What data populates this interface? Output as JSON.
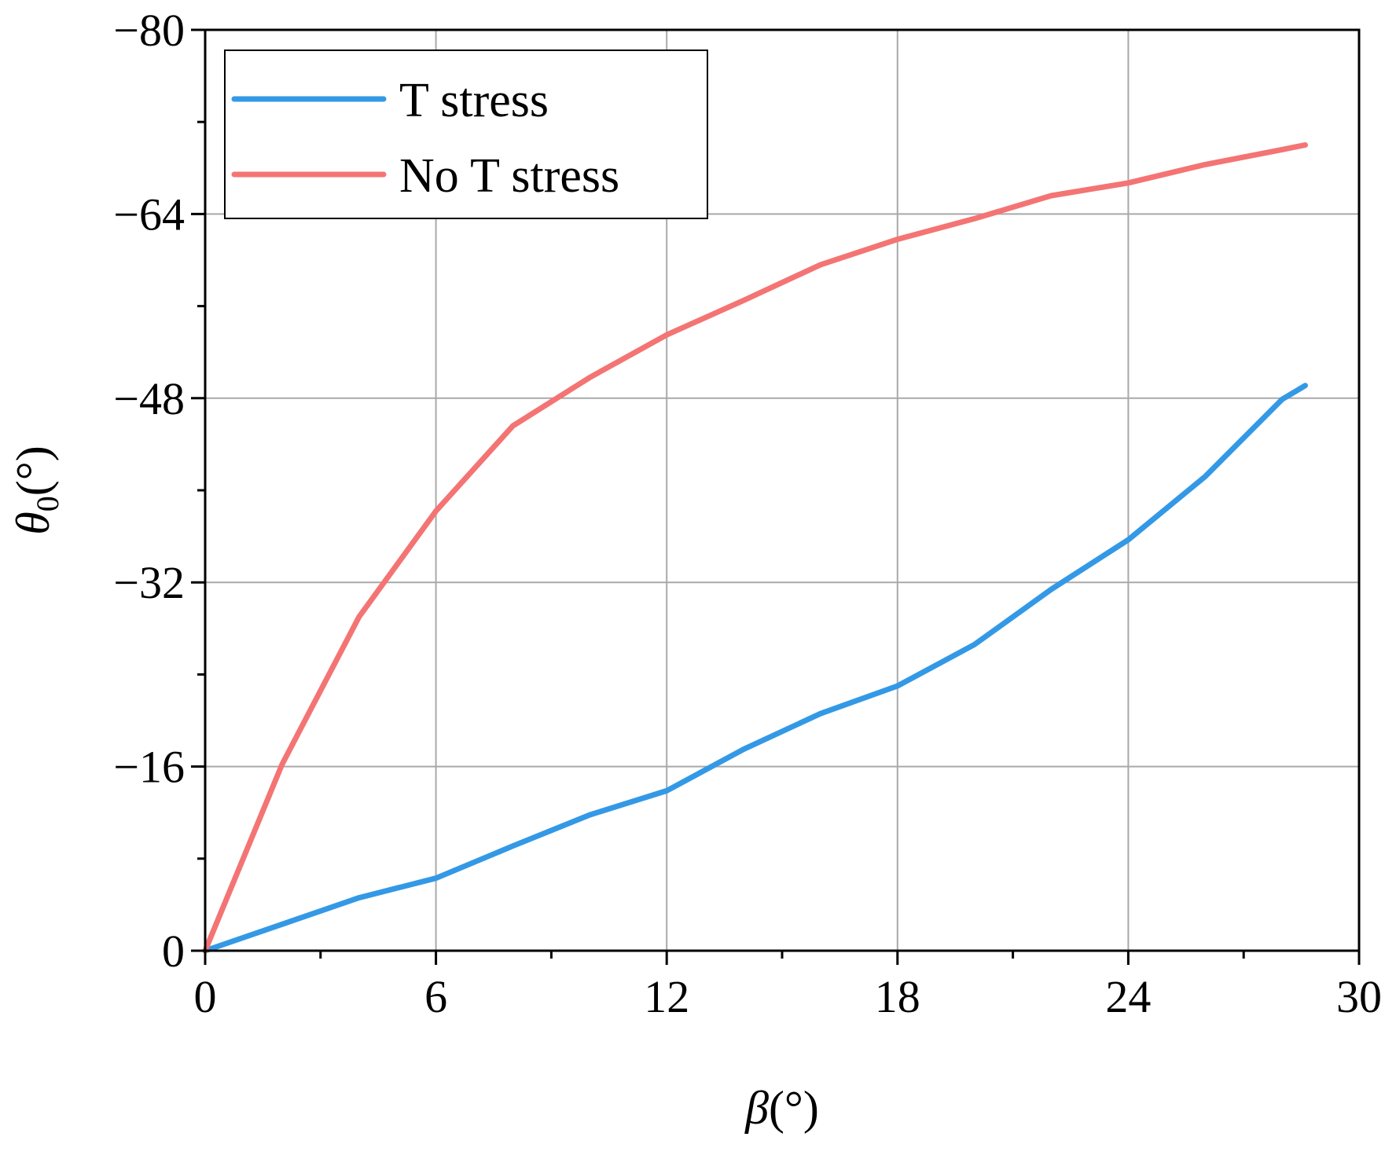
{
  "chart_data": {
    "type": "line",
    "xlabel": {
      "main": "β",
      "unit": "(°)"
    },
    "ylabel": {
      "main": "θ",
      "sub": "0",
      "unit": "(°)"
    },
    "xlim": [
      0,
      30
    ],
    "ylim": [
      0,
      -80
    ],
    "y_axis_inverted": true,
    "x_ticks": [
      0,
      6,
      12,
      18,
      24,
      30
    ],
    "x_tick_labels": [
      "0",
      "6",
      "12",
      "18",
      "24",
      "30"
    ],
    "y_ticks": [
      0,
      -16,
      -32,
      -48,
      -64,
      -80
    ],
    "y_tick_labels": [
      "0",
      "−16",
      "−32",
      "−48",
      "−64",
      "−80"
    ],
    "grid": true,
    "legend_position": "top-left",
    "series": [
      {
        "name": "T stress",
        "color": "#3399e6",
        "x": [
          0,
          2,
          4,
          6,
          8,
          10,
          12,
          14,
          16,
          18,
          20,
          22,
          24,
          26,
          28,
          28.6
        ],
        "y": [
          0,
          -2.3,
          -4.6,
          -6.3,
          -9.1,
          -11.8,
          -13.9,
          -17.5,
          -20.6,
          -23.0,
          -26.6,
          -31.4,
          -35.7,
          -41.2,
          -47.9,
          -49.1
        ]
      },
      {
        "name": "No T stress",
        "color": "#f47474",
        "x": [
          0,
          2,
          4,
          6,
          8,
          10,
          12,
          14,
          16,
          18,
          20,
          22,
          24,
          26,
          28,
          28.6
        ],
        "y": [
          0,
          -16.2,
          -29.0,
          -38.2,
          -45.6,
          -49.8,
          -53.5,
          -56.5,
          -59.6,
          -61.8,
          -63.6,
          -65.6,
          -66.7,
          -68.3,
          -69.6,
          -70.0
        ]
      }
    ]
  }
}
